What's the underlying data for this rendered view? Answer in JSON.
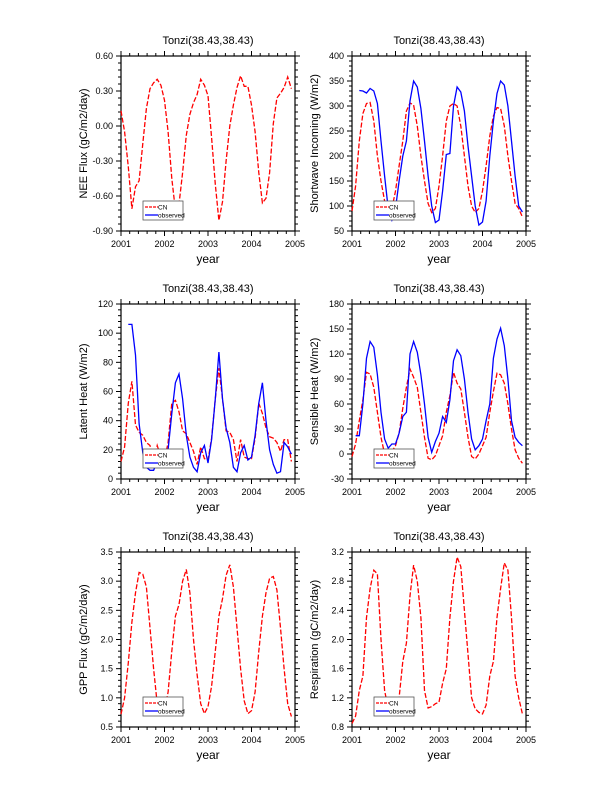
{
  "colors": {
    "cn": "#ff0000",
    "observed": "#0000ff",
    "axis": "#000000"
  },
  "chart_data": [
    {
      "type": "line",
      "title": "Tonzi(38.43,38.43)",
      "xlabel": "year",
      "ylabel": "NEE Flux (gC/m2/day)",
      "xlim": [
        2001,
        2005
      ],
      "ylim": [
        -0.9,
        0.6
      ],
      "xticks": [
        "2001",
        "2002",
        "2003",
        "2004",
        "2005"
      ],
      "yticks": [
        "-0.90",
        "-0.60",
        "-0.30",
        "0.00",
        "0.30",
        "0.60"
      ],
      "legend": {
        "placement": "bottom-left",
        "entries": [
          "CN",
          "observed"
        ]
      },
      "series": [
        {
          "name": "CN",
          "values": [
            0.13,
            -0.05,
            -0.35,
            -0.71,
            -0.52,
            -0.47,
            -0.15,
            0.15,
            0.32,
            0.37,
            0.4,
            0.35,
            0.22,
            -0.05,
            -0.45,
            -0.72,
            -0.67,
            -0.4,
            -0.08,
            0.1,
            0.2,
            0.27,
            0.4,
            0.35,
            0.26,
            -0.1,
            -0.5,
            -0.81,
            -0.65,
            -0.3,
            0.0,
            0.18,
            0.33,
            0.43,
            0.34,
            0.34,
            0.18,
            -0.05,
            -0.4,
            -0.66,
            -0.62,
            -0.4,
            0.02,
            0.24,
            0.28,
            0.33,
            0.42,
            0.32
          ]
        },
        {
          "name": "observed",
          "values": []
        }
      ]
    },
    {
      "type": "line",
      "title": "Tonzi(38.43,38.43)",
      "xlabel": "year",
      "ylabel": "Shortwave Incoming (W/m2)",
      "xlim": [
        2001,
        2005
      ],
      "ylim": [
        50,
        400
      ],
      "xticks": [
        "2001",
        "2002",
        "2003",
        "2004",
        "2005"
      ],
      "yticks": [
        "50",
        "100",
        "150",
        "200",
        "250",
        "300",
        "350",
        "400"
      ],
      "legend": {
        "placement": "bottom-left",
        "entries": [
          "CN",
          "observed"
        ]
      },
      "series": [
        {
          "name": "CN",
          "values": [
            90,
            140,
            230,
            285,
            305,
            307,
            270,
            200,
            150,
            110,
            85,
            95,
            130,
            180,
            230,
            290,
            306,
            302,
            260,
            200,
            150,
            105,
            87,
            95,
            140,
            200,
            270,
            300,
            305,
            300,
            260,
            200,
            140,
            100,
            87,
            95,
            130,
            180,
            240,
            280,
            297,
            295,
            260,
            200,
            150,
            105,
            95,
            78
          ]
        },
        {
          "name": "observed",
          "values": [
            null,
            null,
            331,
            330,
            326,
            335,
            330,
            305,
            230,
            160,
            95,
            72,
            95,
            150,
            200,
            230,
            310,
            350,
            338,
            295,
            230,
            160,
            100,
            67,
            72,
            130,
            203,
            205,
            300,
            338,
            328,
            290,
            220,
            160,
            100,
            62,
            68,
            110,
            200,
            270,
            325,
            350,
            342,
            300,
            230,
            160,
            100,
            88
          ]
        }
      ]
    },
    {
      "type": "line",
      "title": "Tonzi(38.43,38.43)",
      "xlabel": "year",
      "ylabel": "Latent Heat (W/m2)",
      "xlim": [
        2001,
        2005
      ],
      "ylim": [
        0,
        120
      ],
      "xticks": [
        "2001",
        "2002",
        "2003",
        "2004",
        "2005"
      ],
      "yticks": [
        "0",
        "20",
        "40",
        "60",
        "80",
        "100",
        "120"
      ],
      "legend": {
        "placement": "bottom-left",
        "entries": [
          "CN",
          "observed"
        ]
      },
      "series": [
        {
          "name": "CN",
          "values": [
            12,
            22,
            52,
            67,
            37,
            32,
            30,
            25,
            23,
            12,
            23,
            15,
            13,
            25,
            52,
            54,
            46,
            33,
            31,
            25,
            19,
            10,
            22,
            14,
            13,
            28,
            55,
            76,
            55,
            33,
            32,
            27,
            12,
            27,
            15,
            14,
            14,
            28,
            52,
            45,
            35,
            29,
            28,
            25,
            19,
            27,
            27,
            12
          ]
        },
        {
          "name": "observed",
          "values": [
            null,
            null,
            106,
            106,
            85,
            38,
            18,
            8,
            6,
            6,
            12,
            18,
            12,
            20,
            45,
            66,
            72,
            55,
            30,
            15,
            8,
            5,
            18,
            23,
            11,
            27,
            55,
            87,
            55,
            35,
            25,
            8,
            5,
            18,
            23,
            13,
            15,
            30,
            52,
            66,
            40,
            20,
            10,
            4,
            5,
            25,
            22,
            17
          ]
        }
      ]
    },
    {
      "type": "line",
      "title": "Tonzi(38.43,38.43)",
      "xlabel": "year",
      "ylabel": "Sensible Heat (W/m2)",
      "xlim": [
        2001,
        2005
      ],
      "ylim": [
        -30,
        180
      ],
      "xticks": [
        "2001",
        "2002",
        "2003",
        "2004",
        "2005"
      ],
      "yticks": [
        "-30",
        "0",
        "30",
        "60",
        "90",
        "120",
        "150",
        "180"
      ],
      "legend": {
        "placement": "bottom-left",
        "entries": [
          "CN",
          "observed"
        ]
      },
      "series": [
        {
          "name": "CN",
          "values": [
            -3,
            12,
            40,
            65,
            98,
            96,
            80,
            50,
            20,
            0,
            -4,
            3,
            10,
            25,
            55,
            80,
            102,
            92,
            80,
            50,
            20,
            -5,
            -7,
            -2,
            10,
            22,
            50,
            70,
            98,
            85,
            78,
            50,
            20,
            -3,
            -6,
            0,
            10,
            20,
            50,
            75,
            97,
            95,
            85,
            60,
            30,
            5,
            -5,
            -11
          ]
        },
        {
          "name": "observed",
          "values": [
            null,
            22,
            22,
            60,
            115,
            135,
            128,
            95,
            50,
            18,
            7,
            12,
            12,
            25,
            45,
            50,
            120,
            135,
            122,
            95,
            60,
            20,
            2,
            15,
            25,
            45,
            38,
            65,
            112,
            125,
            118,
            90,
            50,
            18,
            5,
            10,
            18,
            40,
            60,
            115,
            138,
            151,
            130,
            90,
            40,
            20,
            14,
            10
          ]
        }
      ]
    },
    {
      "type": "line",
      "title": "Tonzi(38.43,38.43)",
      "xlabel": "year",
      "ylabel": "GPP Flux (gC/m2/day)",
      "xlim": [
        2001,
        2005
      ],
      "ylim": [
        0.5,
        3.5
      ],
      "xticks": [
        "2001",
        "2002",
        "2003",
        "2004",
        "2005"
      ],
      "yticks": [
        "0.5",
        "1.0",
        "1.5",
        "2.0",
        "2.5",
        "3.0",
        "3.5"
      ],
      "legend": {
        "placement": "bottom-left",
        "entries": [
          "CN",
          "observed"
        ]
      },
      "series": [
        {
          "name": "CN",
          "values": [
            0.72,
            1.0,
            1.6,
            2.3,
            2.8,
            3.15,
            3.12,
            2.9,
            2.2,
            1.5,
            0.9,
            0.75,
            0.78,
            1.1,
            1.8,
            2.4,
            2.6,
            3.0,
            3.2,
            2.8,
            2.0,
            1.4,
            0.9,
            0.73,
            0.85,
            1.2,
            1.8,
            2.4,
            2.7,
            3.1,
            3.28,
            2.9,
            2.2,
            1.5,
            0.95,
            0.73,
            0.78,
            1.1,
            1.8,
            2.4,
            2.8,
            3.05,
            3.08,
            2.85,
            2.2,
            1.5,
            0.9,
            0.68
          ]
        },
        {
          "name": "observed",
          "values": []
        }
      ]
    },
    {
      "type": "line",
      "title": "Tonzi(38.43,38.43)",
      "xlabel": "year",
      "ylabel": "Respiration (gC/m2/day)",
      "xlim": [
        2001,
        2005
      ],
      "ylim": [
        0.8,
        3.2
      ],
      "xticks": [
        "2001",
        "2002",
        "2003",
        "2004",
        "2005"
      ],
      "yticks": [
        "0.8",
        "1.2",
        "1.6",
        "2.0",
        "2.4",
        "2.8",
        "3.2"
      ],
      "legend": {
        "placement": "bottom-left",
        "entries": [
          "CN",
          "observed"
        ]
      },
      "series": [
        {
          "name": "CN",
          "values": [
            0.85,
            0.95,
            1.3,
            1.5,
            2.3,
            2.7,
            2.95,
            2.9,
            2.0,
            1.3,
            1.05,
            1.0,
            1.02,
            1.2,
            1.7,
            1.95,
            2.6,
            3.02,
            2.8,
            2.3,
            1.3,
            1.06,
            1.08,
            1.12,
            1.14,
            1.4,
            1.6,
            2.3,
            2.8,
            3.13,
            3.0,
            2.4,
            1.8,
            1.2,
            1.05,
            1.0,
            0.98,
            1.1,
            1.5,
            1.7,
            2.3,
            2.7,
            3.05,
            2.95,
            2.3,
            1.5,
            1.2,
            0.98
          ]
        },
        {
          "name": "observed",
          "values": []
        }
      ]
    }
  ]
}
